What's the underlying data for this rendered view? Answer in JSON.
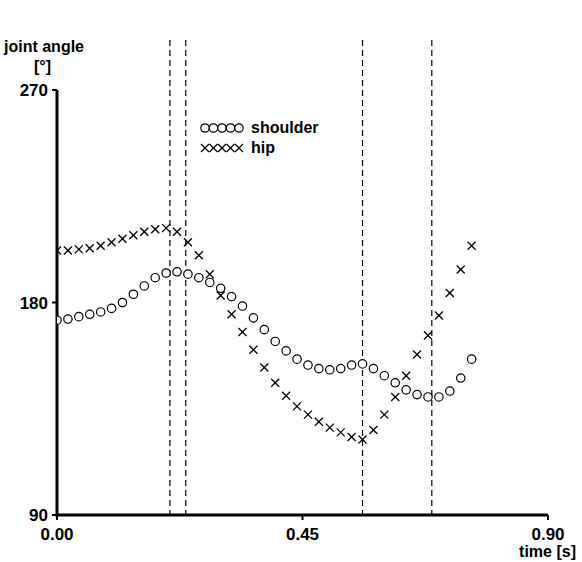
{
  "chart_data": {
    "type": "scatter",
    "y_label": "joint angle [°]",
    "x_label": "time [s]",
    "x": [
      0,
      0.02,
      0.04,
      0.06,
      0.08,
      0.1,
      0.12,
      0.14,
      0.16,
      0.18,
      0.2,
      0.22,
      0.24,
      0.26,
      0.28,
      0.3,
      0.32,
      0.34,
      0.36,
      0.38,
      0.4,
      0.42,
      0.44,
      0.46,
      0.48,
      0.5,
      0.52,
      0.54,
      0.56,
      0.58,
      0.6,
      0.62,
      0.64,
      0.66,
      0.68,
      0.7,
      0.72,
      0.74,
      0.76
    ],
    "series": [
      {
        "name": "shoulder",
        "color": "#000000",
        "marker": "circle",
        "values": [
          172.5,
          173,
          174,
          175,
          176,
          177.5,
          180,
          183.5,
          187,
          190.5,
          192.5,
          193,
          192,
          190.5,
          188.5,
          186,
          182.5,
          178.5,
          173.5,
          168.5,
          163.5,
          159.5,
          156,
          153.5,
          152,
          151.5,
          152,
          153.5,
          154,
          152,
          149,
          146,
          143,
          141,
          140,
          140,
          142.5,
          148,
          156
        ]
      },
      {
        "name": "hip",
        "color": "#000000",
        "marker": "x",
        "values": [
          202,
          202,
          202.5,
          203,
          204,
          205.5,
          207,
          208.5,
          210,
          211,
          211.5,
          210,
          205.5,
          200,
          192,
          183,
          175,
          167.5,
          160,
          152.5,
          146,
          140.5,
          136,
          132.5,
          129.5,
          127,
          125,
          123,
          122,
          126,
          132.5,
          140,
          149,
          158,
          166,
          174.5,
          184,
          194,
          204
        ]
      }
    ],
    "vertical_lines": [
      0.207,
      0.236,
      0.56,
      0.687
    ],
    "xlim": [
      0,
      0.9
    ],
    "xticks": [
      {
        "value": 0,
        "label": "0.00"
      },
      {
        "value": 0.45,
        "label": "0.45"
      },
      {
        "value": 0.9,
        "label": "0.90"
      }
    ],
    "ylim": [
      90,
      270
    ],
    "yticks": [
      90,
      180,
      270
    ],
    "grid": false,
    "legend": "top"
  }
}
